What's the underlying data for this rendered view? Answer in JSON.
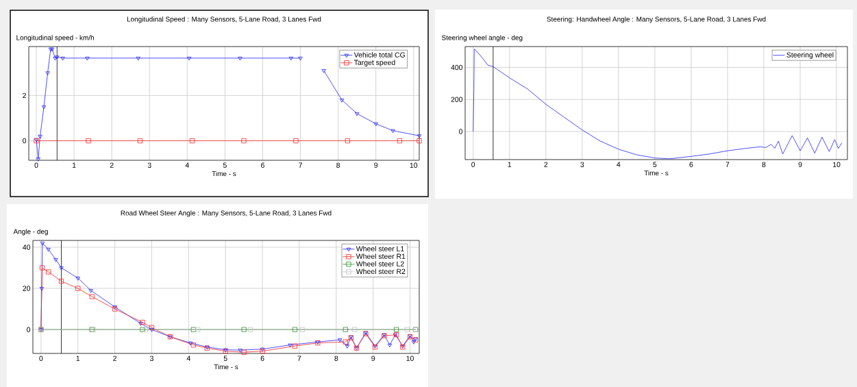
{
  "chart_data": [
    {
      "type": "line",
      "title": "Longitudinal Speed : Many Sensors, 5-Lane Road, 3 Lanes Fwd",
      "ylabel": "Longitudinal speed - km/h",
      "xlabel": "Time - s",
      "xlim": [
        -0.2,
        10.15
      ],
      "ylim": [
        -0.86,
        4.16
      ],
      "xticks": [
        0,
        1,
        2,
        3,
        4,
        5,
        6,
        7,
        8,
        9,
        10
      ],
      "yticks": [
        0,
        2
      ],
      "grid": true,
      "legend": "top right",
      "ref_lines": [
        {
          "axis": "x",
          "value": 0.55,
          "color": "#000000"
        }
      ],
      "series": [
        {
          "name": "Vehicle total CG",
          "color": "#2222ff",
          "marker": "triangle",
          "x": [
            0,
            0.05,
            0.1,
            0.2,
            0.3,
            0.38,
            0.42,
            0.5,
            0.55,
            0.7,
            1.35,
            2.7,
            4.05,
            5.4,
            6.75,
            7.0,
            7.3,
            7.62,
            8.1,
            8.5,
            9.0,
            9.45,
            10.15
          ],
          "values": [
            0.05,
            -0.8,
            0.2,
            1.5,
            3.0,
            4.05,
            4.05,
            3.65,
            3.7,
            3.65,
            3.65,
            3.65,
            3.65,
            3.65,
            3.65,
            3.65,
            null,
            3.1,
            1.8,
            1.2,
            0.75,
            0.45,
            0.22
          ]
        },
        {
          "name": "Target speed",
          "color": "#ff2222",
          "marker": "square",
          "x": [
            0,
            1.38,
            2.75,
            4.13,
            5.5,
            6.88,
            8.25,
            9.63,
            10.15
          ],
          "values": [
            0,
            0,
            0,
            0,
            0,
            0,
            0,
            0,
            0
          ]
        }
      ]
    },
    {
      "type": "line",
      "title": "Steering: Handwheel Angle : Many Sensors, 5-Lane Road, 3 Lanes Fwd",
      "ylabel": "Steering wheel angle - deg",
      "xlabel": "Time - s",
      "xlim": [
        -0.22,
        10.3
      ],
      "ylim": [
        -175,
        530
      ],
      "xticks": [
        0,
        1,
        2,
        3,
        4,
        5,
        6,
        7,
        8,
        9,
        10
      ],
      "yticks": [
        0,
        200,
        400
      ],
      "grid": true,
      "legend": "top right",
      "ref_lines": [
        {
          "axis": "x",
          "value": 0.55,
          "color": "#000000"
        }
      ],
      "series": [
        {
          "name": "Steering wheel",
          "color": "#2222ff",
          "marker": "none",
          "x": [
            0,
            0.02,
            0.03,
            0.1,
            0.25,
            0.4,
            0.55,
            1,
            1.5,
            2,
            2.5,
            3,
            3.5,
            4,
            4.5,
            5,
            5.4,
            6,
            6.5,
            7,
            7.5,
            7.9,
            8.05,
            8.2,
            8.3,
            8.4,
            8.52,
            8.78,
            9.0,
            9.2,
            9.4,
            9.6,
            9.8,
            9.95,
            10.05,
            10.15
          ],
          "values": [
            0,
            260,
            515,
            500,
            460,
            415,
            405,
            335,
            265,
            170,
            90,
            10,
            -60,
            -110,
            -145,
            -165,
            -170,
            -155,
            -140,
            -120,
            -105,
            -95,
            -100,
            -80,
            -105,
            -60,
            -140,
            -25,
            -120,
            -40,
            -135,
            -35,
            -125,
            -50,
            -105,
            -70
          ]
        }
      ]
    },
    {
      "type": "line",
      "title": "Road Wheel Steer Angle : Many Sensors, 5-Lane Road, 3 Lanes Fwd",
      "ylabel": "Angle - deg",
      "xlabel": "Time - s",
      "xlim": [
        -0.22,
        10.25
      ],
      "ylim": [
        -11.6,
        43.3
      ],
      "xticks": [
        0,
        1,
        2,
        3,
        4,
        5,
        6,
        7,
        8,
        9,
        10
      ],
      "yticks": [
        0,
        20,
        40
      ],
      "grid": true,
      "legend": "top right",
      "ref_lines": [
        {
          "axis": "x",
          "value": 0.55,
          "color": "#000000"
        }
      ],
      "series": [
        {
          "name": "Wheel steer L1",
          "color": "#2222ff",
          "marker": "triangle",
          "x": [
            0,
            0.02,
            0.04,
            0.2,
            0.4,
            0.55,
            1,
            1.35,
            2,
            2.7,
            3,
            3.5,
            4.05,
            4.5,
            5,
            5.4,
            6,
            6.75,
            7.5,
            8.1,
            8.3,
            8.4,
            8.55,
            8.8,
            9.05,
            9.3,
            9.45,
            9.6,
            9.8,
            10,
            10.1,
            10.15
          ],
          "values": [
            0,
            20,
            42,
            39,
            34,
            30,
            25,
            19,
            11,
            3,
            0,
            -3.5,
            -6.5,
            -8.5,
            -9.8,
            -10,
            -9.5,
            -7.5,
            -6,
            -5,
            -8,
            -3.5,
            -9,
            -1.5,
            -8,
            -2.5,
            -7.5,
            -2.5,
            -8,
            -3,
            -6,
            -4.5
          ]
        },
        {
          "name": "Wheel steer R1",
          "color": "#ff2222",
          "marker": "square",
          "x": [
            0,
            0.03,
            0.2,
            0.55,
            1,
            1.38,
            2,
            2.75,
            3,
            3.5,
            4.13,
            4.5,
            5,
            5.5,
            6,
            6.88,
            7.5,
            8.25,
            8.4,
            8.55,
            8.8,
            9.05,
            9.3,
            9.63,
            9.8,
            10,
            10.15
          ],
          "values": [
            0,
            30,
            28,
            23.5,
            20,
            16,
            10,
            3.5,
            1,
            -3.5,
            -7.5,
            -9,
            -10.5,
            -11,
            -10.5,
            -8,
            -6.5,
            -6,
            -4,
            -9,
            -2,
            -8.5,
            -3,
            -2.5,
            -8.5,
            -3.5,
            -5
          ]
        },
        {
          "name": "Wheel steer L2",
          "color": "#2e8b2e",
          "marker": "square",
          "x": [
            0,
            1.38,
            2.75,
            4.13,
            5.5,
            6.88,
            8.25,
            9.63,
            10.15
          ],
          "values": [
            0,
            0,
            0,
            0,
            0,
            0,
            0,
            0,
            0
          ]
        },
        {
          "name": "Wheel steer R2",
          "color": "#c0c0c0",
          "marker": "square",
          "x": [
            0,
            1.42,
            2.83,
            4.25,
            5.67,
            7.08,
            8.5,
            9.92,
            10.15
          ],
          "values": [
            0,
            0,
            0,
            0,
            0,
            0,
            0,
            0,
            0
          ]
        }
      ]
    }
  ]
}
